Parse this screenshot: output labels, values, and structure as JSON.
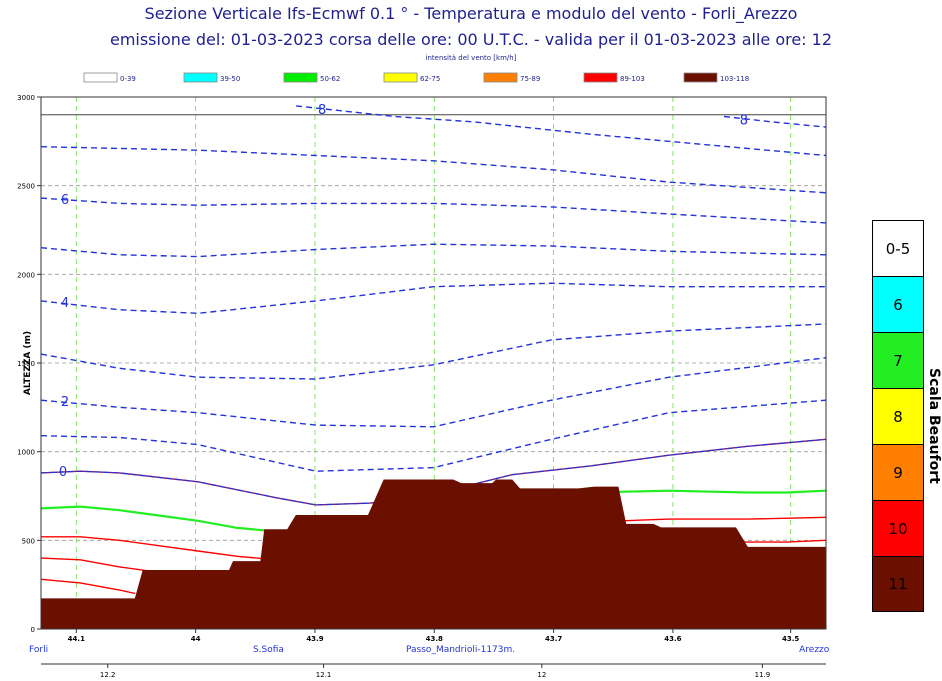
{
  "title": "Sezione Verticale Ifs-Ecmwf 0.1 ° - Temperatura e modulo del vento - Forli_Arezzo",
  "subtitle": "emissione del: 01-03-2023 corsa delle ore: 00 U.T.C. - valida per il 01-03-2023 alle ore: 12",
  "legend_title": "intensità del vento [km/h]",
  "legend": [
    {
      "label": "0-39",
      "color": "#ffffff"
    },
    {
      "label": "39-50",
      "color": "#00ffff"
    },
    {
      "label": "50-62",
      "color": "#00ee00"
    },
    {
      "label": "62-75",
      "color": "#ffff00"
    },
    {
      "label": "75-89",
      "color": "#ff8000"
    },
    {
      "label": "89-103",
      "color": "#ff0000"
    },
    {
      "label": "103-118",
      "color": "#6b1000"
    }
  ],
  "beaufort": {
    "label": "Scala Beaufort",
    "levels": [
      {
        "label": "0-5",
        "color": "#ffffff"
      },
      {
        "label": "6",
        "color": "#00ffff"
      },
      {
        "label": "7",
        "color": "#22ee22"
      },
      {
        "label": "8",
        "color": "#ffff00"
      },
      {
        "label": "9",
        "color": "#ff8000"
      },
      {
        "label": "10",
        "color": "#ff0000"
      },
      {
        "label": "11",
        "color": "#6b1000"
      }
    ]
  },
  "chart_data": {
    "type": "line",
    "ylabel": "ALTEZZA (m)",
    "ylim": [
      0,
      3000
    ],
    "yticks": [
      0,
      500,
      1000,
      1500,
      2000,
      2500,
      3000
    ],
    "xlim": [
      0,
      1
    ],
    "lat_ticks": [
      {
        "x": 0.045,
        "label": "44.1"
      },
      {
        "x": 0.197,
        "label": "44"
      },
      {
        "x": 0.349,
        "label": "43.9"
      },
      {
        "x": 0.501,
        "label": "43.8"
      },
      {
        "x": 0.653,
        "label": "43.7"
      },
      {
        "x": 0.805,
        "label": "43.6"
      },
      {
        "x": 0.955,
        "label": "43.5"
      }
    ],
    "lon_ticks": [
      {
        "x": 0.085,
        "label": "12.2"
      },
      {
        "x": 0.36,
        "label": "12.1"
      },
      {
        "x": 0.638,
        "label": "12"
      },
      {
        "x": 0.919,
        "label": "11.9"
      }
    ],
    "places": [
      {
        "x": 0.0,
        "label": "Forli"
      },
      {
        "x": 0.27,
        "label": "S.Sofia"
      },
      {
        "x": 0.465,
        "label": "Passo_Mandrioli-1173m."
      },
      {
        "x": 0.985,
        "label": "Arezzo"
      }
    ],
    "terrain": {
      "x": [
        0,
        0.12,
        0.13,
        0.24,
        0.245,
        0.28,
        0.285,
        0.314,
        0.325,
        0.417,
        0.437,
        0.525,
        0.535,
        0.575,
        0.58,
        0.6,
        0.61,
        0.685,
        0.705,
        0.735,
        0.745,
        0.78,
        0.79,
        0.885,
        0.9,
        1.0
      ],
      "y": [
        170,
        170,
        330,
        330,
        380,
        380,
        560,
        560,
        640,
        640,
        840,
        840,
        820,
        820,
        840,
        840,
        790,
        790,
        800,
        800,
        590,
        590,
        570,
        570,
        460,
        460
      ]
    },
    "isotherms": [
      {
        "label": "8",
        "x": [
          0.325,
          0.45,
          0.55,
          0.7,
          0.85,
          1.0
        ],
        "y": [
          2950,
          2890,
          2860,
          2790,
          2730,
          2670
        ]
      },
      {
        "label": "8",
        "x": [
          0.87,
          0.93,
          1.0
        ],
        "y": [
          2890,
          2860,
          2830
        ]
      },
      {
        "label": "",
        "x": [
          0,
          0.2,
          0.35,
          0.5,
          0.65,
          0.8,
          1.0
        ],
        "y": [
          2720,
          2700,
          2670,
          2640,
          2590,
          2520,
          2460
        ]
      },
      {
        "label": "6",
        "x": [
          0,
          0.1,
          0.2,
          0.35,
          0.5,
          0.65,
          0.8,
          1.0
        ],
        "y": [
          2430,
          2400,
          2390,
          2400,
          2400,
          2380,
          2340,
          2290
        ]
      },
      {
        "label": "",
        "x": [
          0,
          0.1,
          0.2,
          0.35,
          0.5,
          0.65,
          0.8,
          1.0
        ],
        "y": [
          2150,
          2110,
          2100,
          2140,
          2170,
          2160,
          2130,
          2110
        ]
      },
      {
        "label": "4",
        "x": [
          0,
          0.1,
          0.2,
          0.35,
          0.5,
          0.65,
          0.8,
          1.0
        ],
        "y": [
          1850,
          1800,
          1780,
          1850,
          1930,
          1950,
          1930,
          1930
        ]
      },
      {
        "label": "",
        "x": [
          0,
          0.1,
          0.2,
          0.35,
          0.5,
          0.65,
          0.8,
          1.0
        ],
        "y": [
          1550,
          1470,
          1420,
          1410,
          1490,
          1630,
          1680,
          1720
        ]
      },
      {
        "label": "2",
        "x": [
          0,
          0.1,
          0.2,
          0.35,
          0.5,
          0.65,
          0.8,
          1.0
        ],
        "y": [
          1290,
          1250,
          1220,
          1150,
          1140,
          1290,
          1420,
          1530
        ]
      },
      {
        "label": "",
        "x": [
          0,
          0.1,
          0.2,
          0.35,
          0.5,
          0.65,
          0.8,
          1.0
        ],
        "y": [
          1090,
          1080,
          1040,
          890,
          910,
          1070,
          1220,
          1290
        ]
      }
    ],
    "zero_isotherm": {
      "label": "0",
      "x": [
        0,
        0.05,
        0.1,
        0.2,
        0.3,
        0.35,
        0.42,
        0.5,
        0.6,
        0.7,
        0.8,
        0.9,
        1.0
      ],
      "y": [
        880,
        890,
        880,
        830,
        740,
        700,
        710,
        760,
        870,
        920,
        980,
        1030,
        1070
      ]
    },
    "wind_contours": [
      {
        "color": "#22ee22",
        "x": [
          0,
          0.05,
          0.1,
          0.15,
          0.2,
          0.25,
          0.3
        ],
        "y": [
          680,
          690,
          670,
          640,
          610,
          570,
          550
        ]
      },
      {
        "color": "#22ee22",
        "x": [
          0.6,
          0.7,
          0.8,
          0.9,
          0.95,
          1.0
        ],
        "y": [
          770,
          770,
          780,
          770,
          770,
          780
        ]
      },
      {
        "color": "#ff0000",
        "x": [
          0,
          0.05,
          0.1,
          0.15,
          0.2,
          0.25,
          0.3
        ],
        "y": [
          520,
          520,
          500,
          470,
          440,
          410,
          390
        ]
      },
      {
        "color": "#ff0000",
        "x": [
          0.74,
          0.8,
          0.9,
          1.0
        ],
        "y": [
          610,
          620,
          620,
          630
        ]
      },
      {
        "color": "#ff0000",
        "x": [
          0,
          0.05,
          0.1,
          0.15
        ],
        "y": [
          400,
          390,
          350,
          320
        ]
      },
      {
        "color": "#ff0000",
        "x": [
          0.88,
          0.95,
          1.0
        ],
        "y": [
          490,
          490,
          500
        ]
      },
      {
        "color": "#ff0000",
        "x": [
          0,
          0.05,
          0.1,
          0.12
        ],
        "y": [
          280,
          260,
          220,
          200
        ]
      }
    ],
    "grid": true
  }
}
